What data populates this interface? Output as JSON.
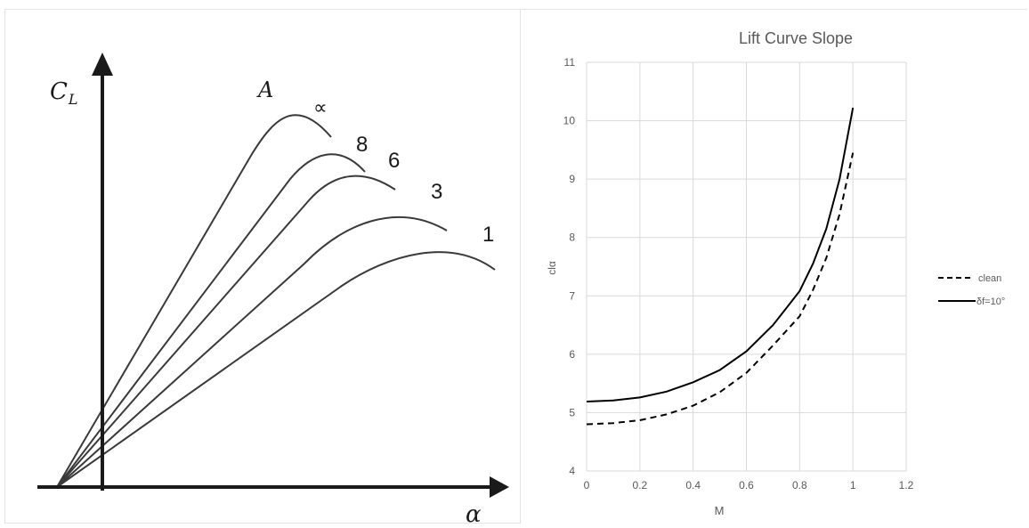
{
  "chart_data": [
    {
      "type": "line",
      "y_axis_label": "C",
      "y_axis_label_sub": "L",
      "x_axis_label": "α",
      "family_label": "A",
      "series": [
        {
          "name": "∝"
        },
        {
          "name": "8"
        },
        {
          "name": "6"
        },
        {
          "name": "3"
        },
        {
          "name": "1"
        }
      ],
      "colors": {
        "axis": "#1a1a1a",
        "curve": "#3a3a3a"
      }
    },
    {
      "type": "line",
      "title": "Lift Curve Slope",
      "xlabel": "M",
      "ylabel": "clα",
      "xlim": [
        0,
        1.2
      ],
      "ylim": [
        4,
        11
      ],
      "xticks": [
        "0",
        "0.2",
        "0.4",
        "0.6",
        "0.8",
        "1",
        "1.2"
      ],
      "yticks": [
        "4",
        "5",
        "6",
        "7",
        "8",
        "9",
        "10",
        "11"
      ],
      "grid": true,
      "legend": "right",
      "x": [
        0,
        0.1,
        0.2,
        0.3,
        0.4,
        0.5,
        0.6,
        0.7,
        0.8,
        0.85,
        0.9,
        0.95,
        1.0
      ],
      "series": [
        {
          "name": "clean",
          "dash": "dashed",
          "values": [
            4.8,
            4.82,
            4.87,
            4.97,
            5.12,
            5.35,
            5.68,
            6.15,
            6.65,
            7.1,
            7.65,
            8.4,
            9.45
          ]
        },
        {
          "name": "δf=10°",
          "dash": "solid",
          "values": [
            5.19,
            5.21,
            5.26,
            5.36,
            5.52,
            5.73,
            6.05,
            6.5,
            7.08,
            7.55,
            8.15,
            9.0,
            10.22
          ]
        }
      ],
      "colors": {
        "line": "#000000",
        "grid": "#d9d9d9",
        "text": "#595959",
        "title": "#595959"
      }
    }
  ]
}
